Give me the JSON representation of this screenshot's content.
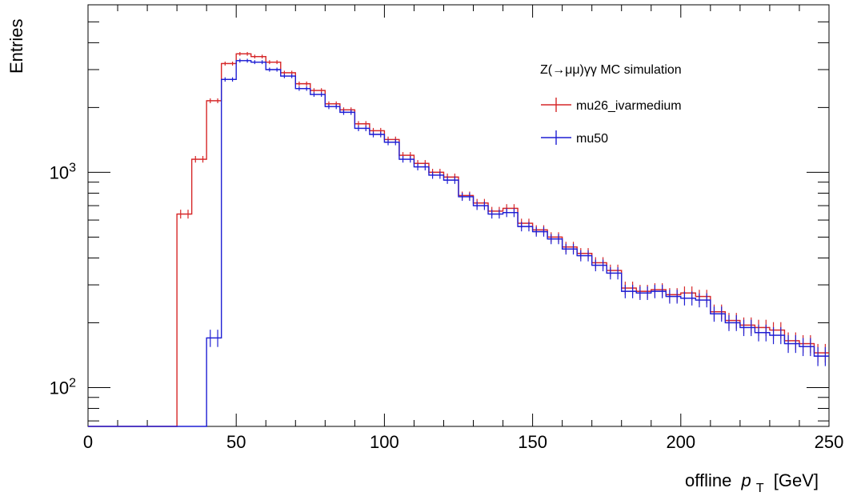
{
  "chart_data": {
    "type": "line",
    "title": "",
    "xlabel": "offline",
    "xlabel_symbol": "p",
    "xlabel_subscript": "T",
    "xlabel_unit": "[GeV]",
    "ylabel": "Entries",
    "xlim": [
      0,
      250
    ],
    "ylim": [
      66,
      6000
    ],
    "yscale": "log",
    "grid": false,
    "legend_position": "top-right",
    "legend_header": "Z(→μμ)γγ MC simulation",
    "x_ticks": [
      {
        "value": 0,
        "label": "0"
      },
      {
        "value": 50,
        "label": "50"
      },
      {
        "value": 100,
        "label": "100"
      },
      {
        "value": 150,
        "label": "150"
      },
      {
        "value": 200,
        "label": "200"
      },
      {
        "value": 250,
        "label": "250"
      }
    ],
    "y_ticks": [
      {
        "value": 100,
        "base": "10",
        "exp": "2"
      },
      {
        "value": 1000,
        "base": "10",
        "exp": "3"
      }
    ],
    "bin_width": 2.5,
    "x": [
      31.25,
      33.75,
      36.25,
      38.75,
      41.25,
      43.75,
      46.25,
      48.75,
      51.25,
      53.75,
      56.25,
      58.75,
      61.25,
      63.75,
      66.25,
      68.75,
      71.25,
      73.75,
      76.25,
      78.75,
      81.25,
      83.75,
      86.25,
      88.75,
      91.25,
      93.75,
      96.25,
      98.75,
      101.25,
      103.75,
      106.25,
      108.75,
      111.25,
      113.75,
      116.25,
      118.75,
      121.25,
      123.75,
      126.25,
      128.75,
      131.25,
      133.75,
      136.25,
      138.75,
      141.25,
      143.75,
      146.25,
      148.75,
      151.25,
      153.75,
      156.25,
      158.75,
      161.25,
      163.75,
      166.25,
      168.75,
      171.25,
      173.75,
      176.25,
      178.75,
      181.25,
      183.75,
      186.25,
      188.75,
      191.25,
      193.75,
      196.25,
      198.75,
      201.25,
      203.75,
      206.25,
      208.75,
      211.25,
      213.75,
      216.25,
      218.75,
      221.25,
      223.75,
      226.25,
      228.75,
      231.25,
      233.75,
      236.25,
      238.75,
      241.25,
      243.75,
      246.25,
      248.75
    ],
    "series": [
      {
        "name": "mu26_ivarmedium",
        "color": "#d62728",
        "values": [
          640,
          640,
          1150,
          1150,
          2150,
          2150,
          3200,
          3200,
          3550,
          3550,
          3450,
          3450,
          3250,
          3250,
          2900,
          2900,
          2580,
          2580,
          2400,
          2400,
          2080,
          2080,
          1950,
          1950,
          1680,
          1680,
          1560,
          1560,
          1420,
          1420,
          1200,
          1200,
          1100,
          1100,
          1000,
          1000,
          950,
          950,
          780,
          780,
          720,
          720,
          660,
          660,
          680,
          680,
          580,
          580,
          540,
          540,
          500,
          500,
          450,
          450,
          420,
          420,
          380,
          380,
          350,
          350,
          290,
          290,
          280,
          280,
          285,
          285,
          270,
          270,
          275,
          275,
          265,
          265,
          225,
          225,
          205,
          205,
          195,
          195,
          190,
          190,
          185,
          185,
          165,
          165,
          160,
          160,
          145,
          145
        ]
      },
      {
        "name": "mu50",
        "color": "#1f1fd4",
        "values": [
          0,
          0,
          0,
          0,
          170,
          170,
          2700,
          2700,
          3300,
          3300,
          3250,
          3250,
          3000,
          3000,
          2800,
          2800,
          2450,
          2450,
          2300,
          2300,
          2020,
          2020,
          1900,
          1900,
          1600,
          1600,
          1500,
          1500,
          1380,
          1380,
          1150,
          1150,
          1060,
          1060,
          970,
          970,
          920,
          920,
          770,
          770,
          700,
          700,
          640,
          640,
          650,
          650,
          560,
          560,
          530,
          530,
          490,
          490,
          440,
          440,
          410,
          410,
          370,
          370,
          340,
          340,
          280,
          280,
          275,
          275,
          280,
          280,
          265,
          265,
          260,
          260,
          255,
          255,
          220,
          220,
          200,
          200,
          190,
          190,
          180,
          180,
          175,
          175,
          160,
          160,
          155,
          155,
          140,
          140
        ]
      }
    ]
  }
}
